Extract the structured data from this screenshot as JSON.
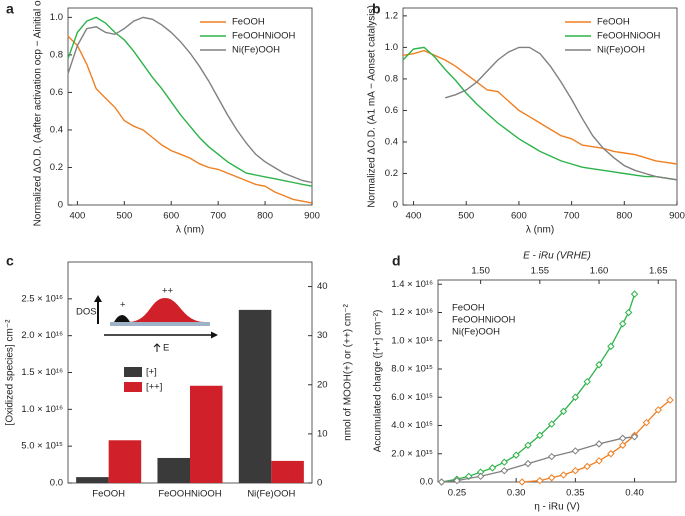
{
  "chart_data": [
    {
      "type": "line",
      "panel_label": "a",
      "x_label": "λ (nm)",
      "y_label": "Normalized ΔO.D. (Aafter activation ocp − Ainitial ocp)",
      "xlim": [
        380,
        900
      ],
      "xticks": [
        400,
        500,
        600,
        700,
        800,
        900
      ],
      "ylim": [
        0,
        1.05
      ],
      "yticks": [
        0,
        0.2,
        0.4,
        0.6,
        0.8,
        {
          "value": 1,
          "label": "1.0"
        }
      ],
      "legend": "upper right",
      "x": [
        380,
        400,
        420,
        440,
        460,
        480,
        500,
        520,
        540,
        560,
        580,
        600,
        620,
        640,
        660,
        680,
        700,
        720,
        740,
        760,
        780,
        800,
        820,
        840,
        860,
        880,
        900
      ],
      "series": [
        {
          "name": "FeOOH",
          "color": "#f07f22",
          "values": [
            0.9,
            0.85,
            0.75,
            0.62,
            0.57,
            0.52,
            0.45,
            0.42,
            0.4,
            0.36,
            0.32,
            0.29,
            0.27,
            0.25,
            0.22,
            0.2,
            0.19,
            0.17,
            0.15,
            0.13,
            0.11,
            0.1,
            0.07,
            0.05,
            0.03,
            0.02,
            0.01
          ]
        },
        {
          "name": "FeOOHNiOOH",
          "color": "#2db34a",
          "values": [
            0.78,
            0.92,
            0.98,
            1.0,
            0.97,
            0.92,
            0.88,
            0.82,
            0.75,
            0.68,
            0.62,
            0.55,
            0.48,
            0.42,
            0.36,
            0.31,
            0.27,
            0.23,
            0.2,
            0.17,
            0.16,
            0.15,
            0.14,
            0.13,
            0.12,
            0.11,
            0.1
          ]
        },
        {
          "name": "Ni(Fe)OOH",
          "color": "#808080",
          "values": [
            0.7,
            0.85,
            0.94,
            0.95,
            0.92,
            0.91,
            0.94,
            0.98,
            1.0,
            0.99,
            0.96,
            0.92,
            0.87,
            0.81,
            0.74,
            0.66,
            0.57,
            0.48,
            0.4,
            0.33,
            0.27,
            0.23,
            0.2,
            0.17,
            0.15,
            0.13,
            0.12
          ]
        }
      ]
    },
    {
      "type": "line",
      "panel_label": "b",
      "x_label": "λ (nm)",
      "y_label": "Normalized ΔO.D. (A1 mA − Aonset catalysis)",
      "xlim": [
        380,
        900
      ],
      "xticks": [
        400,
        500,
        600,
        700,
        800,
        900
      ],
      "ylim": [
        0,
        1.25
      ],
      "yticks": [
        0,
        0.2,
        0.4,
        0.6,
        0.8,
        {
          "value": 1,
          "label": "1.0"
        },
        1.2
      ],
      "legend": "upper right",
      "x": [
        380,
        400,
        420,
        440,
        460,
        480,
        500,
        520,
        540,
        560,
        580,
        600,
        620,
        640,
        660,
        680,
        700,
        720,
        740,
        760,
        780,
        800,
        820,
        840,
        860,
        880,
        900
      ],
      "series": [
        {
          "name": "FeOOH",
          "color": "#f07f22",
          "values": [
            0.95,
            0.96,
            0.98,
            0.95,
            0.92,
            0.88,
            0.83,
            0.78,
            0.73,
            0.72,
            0.66,
            0.6,
            0.56,
            0.52,
            0.48,
            0.44,
            0.42,
            0.38,
            0.37,
            0.36,
            0.34,
            0.33,
            0.32,
            0.3,
            0.28,
            0.27,
            0.26
          ]
        },
        {
          "name": "FeOOHNiOOH",
          "color": "#2db34a",
          "values": [
            0.92,
            0.99,
            1.0,
            0.94,
            0.86,
            0.79,
            0.71,
            0.64,
            0.58,
            0.52,
            0.47,
            0.42,
            0.38,
            0.34,
            0.31,
            0.28,
            0.26,
            0.24,
            0.23,
            0.22,
            0.21,
            0.2,
            0.19,
            0.18,
            0.18,
            0.17,
            0.16
          ]
        },
        {
          "name": "Ni(Fe)OOH",
          "color": "#808080",
          "values": [
            null,
            null,
            null,
            null,
            0.68,
            0.7,
            0.73,
            0.78,
            0.85,
            0.92,
            0.97,
            1.0,
            1.0,
            0.96,
            0.88,
            0.78,
            0.67,
            0.55,
            0.44,
            0.36,
            0.3,
            0.25,
            0.22,
            0.2,
            0.18,
            0.17,
            0.16
          ]
        }
      ]
    },
    {
      "type": "bar",
      "panel_label": "c",
      "y_label": "[Oxidized species] cm⁻²",
      "y2_label": "nmol of MOOH(+) or (++) cm⁻²",
      "categories": [
        "FeOOH",
        "FeOOHNiOOH",
        "Ni(Fe)OOH"
      ],
      "category_colors": [
        "#f07f22",
        "#2db34a",
        "#808080"
      ],
      "ylim": [
        0,
        3e+16
      ],
      "yticks": [
        {
          "value": 0,
          "label": "0.0"
        },
        {
          "value": 5000000000000000.0,
          "label": "5.0 × 10¹⁵"
        },
        {
          "value": 1e+16,
          "label": "1.0 × 10¹⁶"
        },
        {
          "value": 1.5e+16,
          "label": "1.5 × 10¹⁶"
        },
        {
          "value": 2e+16,
          "label": "2.0 × 10¹⁶"
        },
        {
          "value": 2.5e+16,
          "label": "2.5 × 10¹⁶"
        }
      ],
      "y2lim": [
        0,
        45
      ],
      "y2ticks": [
        0,
        10,
        20,
        30,
        40
      ],
      "legend": "upper left",
      "inset_labels": [
        "DOS",
        "+",
        "++",
        "E"
      ],
      "series": [
        {
          "name": "[+]",
          "color": "#3a3a3a",
          "values": [
            800000000000000.0,
            3400000000000000.0,
            2.35e+16
          ]
        },
        {
          "name": "[++]",
          "color": "#d0202a",
          "values": [
            5800000000000000.0,
            1.32e+16,
            3000000000000000.0
          ]
        }
      ]
    },
    {
      "type": "scatter",
      "lines": true,
      "marker": "diamond",
      "panel_label": "d",
      "x_label": "η - iRu (V)",
      "x2_label": "E - iRu (VRHE)",
      "y_label": "Accumulated charge ([++] cm⁻²)",
      "xlim": [
        0.234,
        0.435
      ],
      "xticks": [
        0.25,
        {
          "value": 0.3,
          "label": "0.30"
        },
        0.35,
        {
          "value": 0.4,
          "label": "0.40"
        }
      ],
      "x2lim": [
        1.464,
        1.665
      ],
      "x2ticks": [
        {
          "value": 1.5,
          "label": "1.50"
        },
        1.55,
        {
          "value": 1.6,
          "label": "1.60"
        },
        1.65
      ],
      "ylim": [
        0,
        1.43e+16
      ],
      "yticks": [
        {
          "value": 0,
          "label": "0.0"
        },
        {
          "value": 2000000000000000.0,
          "label": "2.0 × 10¹⁵"
        },
        {
          "value": 4000000000000000.0,
          "label": "4.0 × 10¹⁵"
        },
        {
          "value": 6000000000000000.0,
          "label": "6.0 × 10¹⁵"
        },
        {
          "value": 8000000000000000.0,
          "label": "8.0 × 10¹⁵"
        },
        {
          "value": 1e+16,
          "label": "1.0 × 10¹⁶"
        },
        {
          "value": 1.2e+16,
          "label": "1.2 × 10¹⁶"
        },
        {
          "value": 1.4e+16,
          "label": "1.4 × 10¹⁶"
        }
      ],
      "legend": "upper left",
      "series": [
        {
          "name": "FeOOH",
          "color": "#f07f22",
          "x": [
            0.305,
            0.32,
            0.33,
            0.34,
            0.35,
            0.36,
            0.37,
            0.38,
            0.39,
            0.4,
            0.41,
            0.42,
            0.43
          ],
          "values": [
            0,
            100000000000000.0,
            300000000000000.0,
            500000000000000.0,
            800000000000000.0,
            1100000000000000.0,
            1500000000000000.0,
            2000000000000000.0,
            2600000000000000.0,
            3300000000000000.0,
            4200000000000000.0,
            5100000000000000.0,
            5800000000000000.0
          ]
        },
        {
          "name": "FeOOHNiOOH",
          "color": "#2db34a",
          "x": [
            0.237,
            0.25,
            0.26,
            0.27,
            0.28,
            0.29,
            0.3,
            0.31,
            0.32,
            0.33,
            0.34,
            0.35,
            0.36,
            0.37,
            0.38,
            0.39,
            0.395,
            0.4
          ],
          "values": [
            0,
            200000000000000.0,
            400000000000000.0,
            700000000000000.0,
            1000000000000000.0,
            1400000000000000.0,
            1900000000000000.0,
            2600000000000000.0,
            3300000000000000.0,
            4100000000000000.0,
            5000000000000000.0,
            6000000000000000.0,
            7100000000000000.0,
            8300000000000000.0,
            9600000000000000.0,
            1.12e+16,
            1.2e+16,
            1.33e+16
          ]
        },
        {
          "name": "Ni(Fe)OOH",
          "color": "#808080",
          "x": [
            0.237,
            0.25,
            0.27,
            0.29,
            0.31,
            0.33,
            0.35,
            0.37,
            0.39,
            0.4
          ],
          "values": [
            0,
            100000000000000.0,
            400000000000000.0,
            800000000000000.0,
            1300000000000000.0,
            1800000000000000.0,
            2200000000000000.0,
            2700000000000000.0,
            3100000000000000.0,
            3200000000000000.0
          ]
        }
      ]
    }
  ]
}
